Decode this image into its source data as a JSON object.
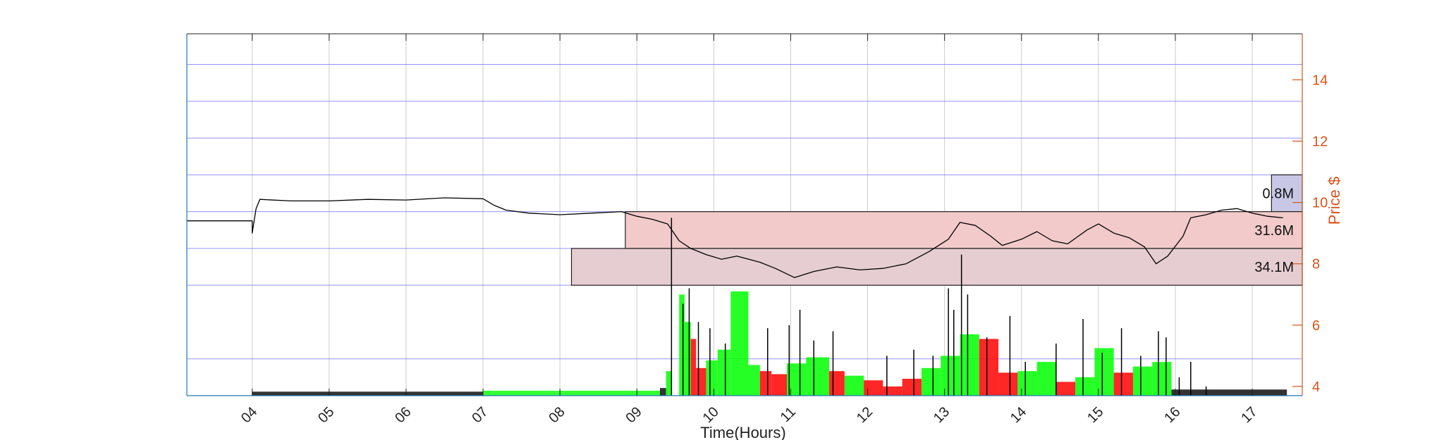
{
  "chart_data": {
    "type": "bar",
    "xlabel": "Time(Hours)",
    "ylabel": "Price $",
    "xlim": [
      3.15,
      17.65
    ],
    "ylim": [
      3.7,
      15.5
    ],
    "x_ticks": [
      "04",
      "05",
      "06",
      "07",
      "08",
      "09",
      "10",
      "11",
      "12",
      "13",
      "14",
      "15",
      "16",
      "17"
    ],
    "y_ticks": [
      4,
      6,
      8,
      10,
      12,
      14
    ],
    "grid": true,
    "horizontal_lines": [
      4.9,
      7.3,
      8.5,
      9.7,
      10.9,
      12.1,
      13.3,
      14.5
    ],
    "colors": {
      "axis": "#1f77b4",
      "price_axis": "#d95319",
      "price_line": "#000000",
      "hgrid": "#6666ff",
      "vgrid": "#cccccc",
      "up_volume": "#00ff00",
      "down_volume": "#ff0000",
      "zone_upper": "#f2caca",
      "zone_lower": "#e6cdd2",
      "zone_top": "#c8c8e6"
    },
    "volume_profile": [
      {
        "label": "0.8M",
        "price_low": 9.7,
        "price_high": 10.9,
        "x_start": 17.25,
        "x_end": 17.65
      },
      {
        "label": "31.6M",
        "price_low": 8.5,
        "price_high": 9.7,
        "x_start": 8.85,
        "x_end": 17.65
      },
      {
        "label": "34.1M",
        "price_low": 7.3,
        "price_high": 8.5,
        "x_start": 8.15,
        "x_end": 17.65
      }
    ],
    "price_series": {
      "name": "Price",
      "x": [
        3.15,
        4.0,
        4.0,
        4.05,
        4.1,
        4.5,
        5.0,
        5.5,
        6.0,
        6.5,
        7.0,
        7.15,
        7.3,
        7.6,
        8.0,
        8.4,
        8.8,
        9.0,
        9.2,
        9.4,
        9.55,
        9.7,
        9.9,
        10.1,
        10.3,
        10.6,
        10.8,
        11.05,
        11.3,
        11.6,
        11.9,
        12.2,
        12.5,
        12.8,
        13.05,
        13.2,
        13.4,
        13.6,
        13.75,
        14.0,
        14.2,
        14.4,
        14.6,
        14.85,
        15.0,
        15.2,
        15.4,
        15.6,
        15.75,
        15.9,
        16.1,
        16.2,
        16.4,
        16.6,
        16.8,
        17.0,
        17.2,
        17.4
      ],
      "y": [
        9.4,
        9.4,
        9.0,
        9.8,
        10.1,
        10.05,
        10.05,
        10.1,
        10.08,
        10.15,
        10.12,
        9.9,
        9.75,
        9.65,
        9.6,
        9.65,
        9.7,
        9.55,
        9.45,
        9.3,
        8.75,
        8.5,
        8.3,
        8.15,
        8.25,
        8.05,
        7.85,
        7.55,
        7.75,
        7.9,
        7.8,
        7.85,
        8.0,
        8.4,
        8.8,
        9.35,
        9.25,
        8.9,
        8.6,
        8.8,
        9.05,
        8.75,
        8.65,
        9.1,
        9.3,
        9.0,
        8.85,
        8.55,
        8.0,
        8.25,
        8.9,
        9.5,
        9.6,
        9.75,
        9.8,
        9.65,
        9.55,
        9.5
      ]
    },
    "volume_bars": [
      {
        "x_start": 9.38,
        "x_end": 9.45,
        "height": 4.5,
        "color": "up"
      },
      {
        "x_start": 9.55,
        "x_end": 9.62,
        "height": 7.0,
        "color": "up"
      },
      {
        "x_start": 9.62,
        "x_end": 9.7,
        "height": 6.1,
        "color": "up"
      },
      {
        "x_start": 9.7,
        "x_end": 9.77,
        "height": 5.55,
        "color": "down"
      },
      {
        "x_start": 9.77,
        "x_end": 9.9,
        "height": 4.6,
        "color": "down"
      },
      {
        "x_start": 9.9,
        "x_end": 10.05,
        "height": 4.85,
        "color": "up"
      },
      {
        "x_start": 10.05,
        "x_end": 10.22,
        "height": 5.2,
        "color": "up"
      },
      {
        "x_start": 10.22,
        "x_end": 10.45,
        "height": 7.1,
        "color": "up"
      },
      {
        "x_start": 10.45,
        "x_end": 10.6,
        "height": 4.7,
        "color": "up"
      },
      {
        "x_start": 10.6,
        "x_end": 10.75,
        "height": 4.5,
        "color": "down"
      },
      {
        "x_start": 10.75,
        "x_end": 10.95,
        "height": 4.4,
        "color": "down"
      },
      {
        "x_start": 10.95,
        "x_end": 11.2,
        "height": 4.75,
        "color": "up"
      },
      {
        "x_start": 11.2,
        "x_end": 11.5,
        "height": 4.95,
        "color": "up"
      },
      {
        "x_start": 11.5,
        "x_end": 11.7,
        "height": 4.5,
        "color": "down"
      },
      {
        "x_start": 11.7,
        "x_end": 11.95,
        "height": 4.35,
        "color": "up"
      },
      {
        "x_start": 11.95,
        "x_end": 12.2,
        "height": 4.2,
        "color": "down"
      },
      {
        "x_start": 12.2,
        "x_end": 12.45,
        "height": 4.0,
        "color": "down"
      },
      {
        "x_start": 12.45,
        "x_end": 12.7,
        "height": 4.25,
        "color": "down"
      },
      {
        "x_start": 12.7,
        "x_end": 12.95,
        "height": 4.6,
        "color": "up"
      },
      {
        "x_start": 12.95,
        "x_end": 13.2,
        "height": 5.0,
        "color": "up"
      },
      {
        "x_start": 13.2,
        "x_end": 13.45,
        "height": 5.7,
        "color": "up"
      },
      {
        "x_start": 13.45,
        "x_end": 13.7,
        "height": 5.55,
        "color": "down"
      },
      {
        "x_start": 13.7,
        "x_end": 13.95,
        "height": 4.45,
        "color": "down"
      },
      {
        "x_start": 13.95,
        "x_end": 14.2,
        "height": 4.5,
        "color": "up"
      },
      {
        "x_start": 14.2,
        "x_end": 14.45,
        "height": 4.8,
        "color": "up"
      },
      {
        "x_start": 14.45,
        "x_end": 14.7,
        "height": 4.15,
        "color": "down"
      },
      {
        "x_start": 14.7,
        "x_end": 14.95,
        "height": 4.3,
        "color": "up"
      },
      {
        "x_start": 14.95,
        "x_end": 15.2,
        "height": 5.25,
        "color": "up"
      },
      {
        "x_start": 15.2,
        "x_end": 15.45,
        "height": 4.45,
        "color": "down"
      },
      {
        "x_start": 15.45,
        "x_end": 15.7,
        "height": 4.65,
        "color": "up"
      },
      {
        "x_start": 15.7,
        "x_end": 15.95,
        "height": 4.8,
        "color": "up"
      }
    ],
    "volume_spikes": [
      {
        "x": 9.45,
        "height": 9.5
      },
      {
        "x": 9.6,
        "height": 6.7
      },
      {
        "x": 9.68,
        "height": 7.2
      },
      {
        "x": 9.8,
        "height": 6.1
      },
      {
        "x": 9.95,
        "height": 5.9
      },
      {
        "x": 10.15,
        "height": 5.4
      },
      {
        "x": 10.7,
        "height": 5.9
      },
      {
        "x": 10.98,
        "height": 6.0
      },
      {
        "x": 11.12,
        "height": 6.5
      },
      {
        "x": 11.3,
        "height": 5.5
      },
      {
        "x": 11.55,
        "height": 5.8
      },
      {
        "x": 12.25,
        "height": 5.0
      },
      {
        "x": 12.6,
        "height": 5.2
      },
      {
        "x": 12.85,
        "height": 5.0
      },
      {
        "x": 13.05,
        "height": 7.2
      },
      {
        "x": 13.12,
        "height": 6.5
      },
      {
        "x": 13.22,
        "height": 8.3
      },
      {
        "x": 13.3,
        "height": 7.0
      },
      {
        "x": 13.55,
        "height": 5.6
      },
      {
        "x": 13.85,
        "height": 6.3
      },
      {
        "x": 14.05,
        "height": 4.8
      },
      {
        "x": 14.45,
        "height": 5.4
      },
      {
        "x": 14.8,
        "height": 6.2
      },
      {
        "x": 15.05,
        "height": 5.1
      },
      {
        "x": 15.3,
        "height": 5.9
      },
      {
        "x": 15.55,
        "height": 5.0
      },
      {
        "x": 15.78,
        "height": 5.8
      },
      {
        "x": 15.88,
        "height": 5.6
      },
      {
        "x": 16.05,
        "height": 4.3
      },
      {
        "x": 16.2,
        "height": 4.8
      },
      {
        "x": 16.4,
        "height": 4.0
      }
    ],
    "baseline_volume": [
      {
        "x_start": 4.0,
        "x_end": 7.0,
        "height": 3.83,
        "color": "line"
      },
      {
        "x_start": 7.0,
        "x_end": 9.3,
        "height": 3.86,
        "color": "up"
      },
      {
        "x_start": 9.3,
        "x_end": 9.38,
        "height": 3.95,
        "color": "line"
      },
      {
        "x_start": 15.95,
        "x_end": 17.45,
        "height": 3.9,
        "color": "line"
      }
    ]
  }
}
